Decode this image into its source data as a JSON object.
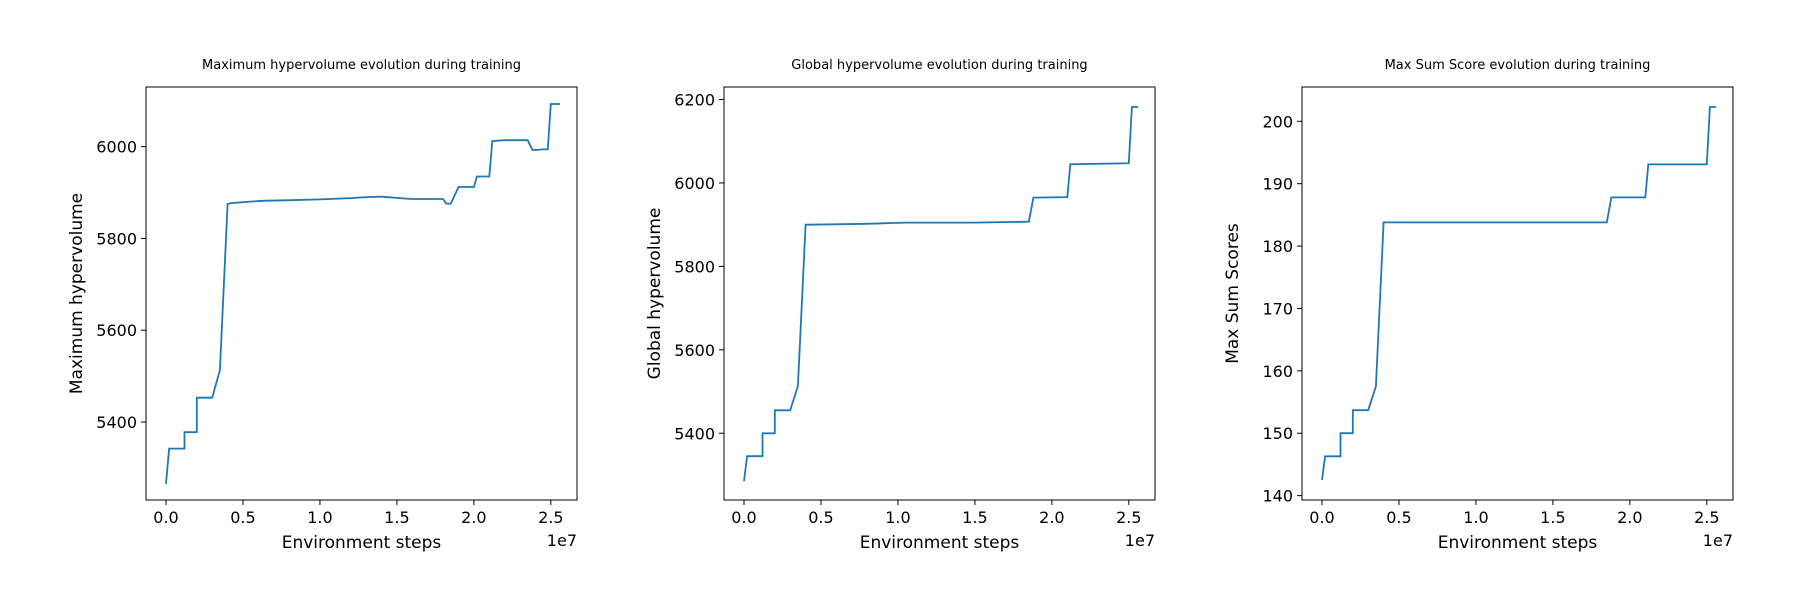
{
  "chart_data": [
    {
      "type": "line",
      "title": "Maximum hypervolume evolution during training",
      "xlabel": "Environment steps",
      "ylabel": "Maximum hypervolume",
      "x_multiplier_label": "1e7",
      "xlim": [
        -0.13,
        2.67
      ],
      "ylim": [
        5230,
        6130
      ],
      "xticks": [
        0.0,
        0.5,
        1.0,
        1.5,
        2.0,
        2.5
      ],
      "xtick_labels": [
        "0.0",
        "0.5",
        "1.0",
        "1.5",
        "2.0",
        "2.5"
      ],
      "yticks": [
        5400,
        5600,
        5800,
        6000
      ],
      "ytick_labels": [
        "5400",
        "5600",
        "5800",
        "6000"
      ],
      "grid": false,
      "series": [
        {
          "color": "#1f77b4",
          "x": [
            0.0,
            0.02,
            0.12,
            0.12,
            0.2,
            0.2,
            0.3,
            0.35,
            0.35,
            0.4,
            0.42,
            0.62,
            0.78,
            1.0,
            1.2,
            1.3,
            1.4,
            1.55,
            1.6,
            1.7,
            1.8,
            1.82,
            1.85,
            1.9,
            2.0,
            2.02,
            2.1,
            2.12,
            2.2,
            2.3,
            2.35,
            2.38,
            2.42,
            2.44,
            2.48,
            2.5,
            2.56
          ],
          "y": [
            5265,
            5342,
            5342,
            5378,
            5378,
            5453,
            5453,
            5513,
            5513,
            5875,
            5877,
            5882,
            5883,
            5885,
            5888,
            5890,
            5891,
            5887,
            5886,
            5886,
            5886,
            5876,
            5876,
            5912,
            5912,
            5935,
            5935,
            6012,
            6014,
            6014,
            6014,
            5993,
            5993,
            5994,
            5994,
            6093,
            6093
          ]
        }
      ]
    },
    {
      "type": "line",
      "title": "Global hypervolume evolution during training",
      "xlabel": "Environment steps",
      "ylabel": "Global hypervolume",
      "x_multiplier_label": "1e7",
      "xlim": [
        -0.13,
        2.67
      ],
      "ylim": [
        5240,
        6230
      ],
      "xticks": [
        0.0,
        0.5,
        1.0,
        1.5,
        2.0,
        2.5
      ],
      "xtick_labels": [
        "0.0",
        "0.5",
        "1.0",
        "1.5",
        "2.0",
        "2.5"
      ],
      "yticks": [
        5400,
        5600,
        5800,
        6000,
        6200
      ],
      "ytick_labels": [
        "5400",
        "5600",
        "5800",
        "6000",
        "6200"
      ],
      "grid": false,
      "series": [
        {
          "color": "#1f77b4",
          "x": [
            0.0,
            0.02,
            0.12,
            0.12,
            0.2,
            0.2,
            0.3,
            0.35,
            0.35,
            0.4,
            0.42,
            0.8,
            1.05,
            1.5,
            1.85,
            1.88,
            2.1,
            2.12,
            2.5,
            2.52,
            2.56
          ],
          "y": [
            5285,
            5345,
            5345,
            5400,
            5400,
            5455,
            5455,
            5513,
            5513,
            5900,
            5900,
            5902,
            5905,
            5905,
            5907,
            5965,
            5966,
            6045,
            6047,
            6182,
            6182
          ]
        }
      ]
    },
    {
      "type": "line",
      "title": "Max Sum Score evolution during training",
      "xlabel": "Environment steps",
      "ylabel": "Max Sum Scores",
      "x_multiplier_label": "1e7",
      "xlim": [
        -0.13,
        2.67
      ],
      "ylim": [
        139.3,
        205.5
      ],
      "xticks": [
        0.0,
        0.5,
        1.0,
        1.5,
        2.0,
        2.5
      ],
      "xtick_labels": [
        "0.0",
        "0.5",
        "1.0",
        "1.5",
        "2.0",
        "2.5"
      ],
      "yticks": [
        140,
        150,
        160,
        170,
        180,
        190,
        200
      ],
      "ytick_labels": [
        "140",
        "150",
        "160",
        "170",
        "180",
        "190",
        "200"
      ],
      "grid": false,
      "series": [
        {
          "color": "#1f77b4",
          "x": [
            0.0,
            0.02,
            0.12,
            0.12,
            0.2,
            0.2,
            0.3,
            0.35,
            0.35,
            0.4,
            0.42,
            1.85,
            1.88,
            2.1,
            2.12,
            2.5,
            2.52,
            2.56
          ],
          "y": [
            142.5,
            146.3,
            146.3,
            150.0,
            150.0,
            153.7,
            153.7,
            157.5,
            157.5,
            183.8,
            183.8,
            183.8,
            187.8,
            187.8,
            193.1,
            193.1,
            202.3,
            202.3
          ]
        }
      ]
    }
  ]
}
